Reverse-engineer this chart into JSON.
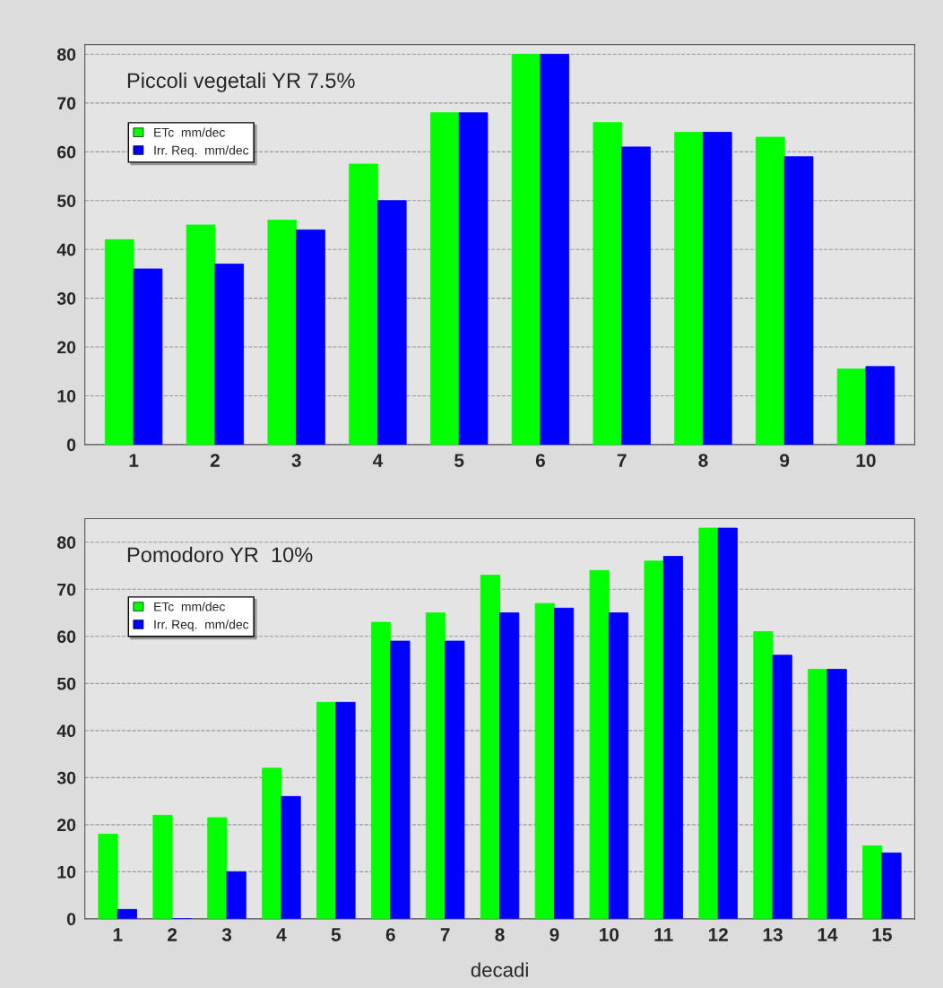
{
  "chart_data": [
    {
      "type": "bar",
      "title": "Piccoli vegetali YR 7.5%",
      "categories": [
        "1",
        "2",
        "3",
        "4",
        "5",
        "6",
        "7",
        "8",
        "9",
        "10"
      ],
      "series": [
        {
          "name": "ETc  mm/dec",
          "color": "#00ff00",
          "values": [
            42,
            45,
            46,
            57.5,
            68,
            80,
            66,
            64,
            63,
            15.5
          ]
        },
        {
          "name": "Irr. Req.  mm/dec",
          "color": "#0000ff",
          "values": [
            36,
            37,
            44,
            50,
            68,
            80,
            61,
            64,
            59,
            16
          ]
        }
      ],
      "ylim": [
        0,
        82
      ],
      "yticks": [
        0,
        10,
        20,
        30,
        40,
        50,
        60,
        70,
        80
      ],
      "grid": "y",
      "legend": "top left"
    },
    {
      "type": "bar",
      "title": "Pomodoro YR  10%",
      "xlabel": "decadi",
      "categories": [
        "1",
        "2",
        "3",
        "4",
        "5",
        "6",
        "7",
        "8",
        "9",
        "10",
        "11",
        "12",
        "13",
        "14",
        "15"
      ],
      "series": [
        {
          "name": "ETc  mm/dec",
          "color": "#00ff00",
          "values": [
            18,
            22,
            21.5,
            32,
            46,
            63,
            65,
            73,
            67,
            74,
            76,
            83,
            61,
            53,
            15.5
          ]
        },
        {
          "name": "Irr. Req.  mm/dec",
          "color": "#0000ff",
          "values": [
            2,
            0,
            10,
            26,
            46,
            59,
            59,
            65,
            66,
            65,
            77,
            83,
            56,
            53,
            14
          ]
        }
      ],
      "ylim": [
        0,
        85
      ],
      "yticks": [
        0,
        10,
        20,
        30,
        40,
        50,
        60,
        70,
        80
      ],
      "grid": "y",
      "legend": "top left"
    }
  ]
}
